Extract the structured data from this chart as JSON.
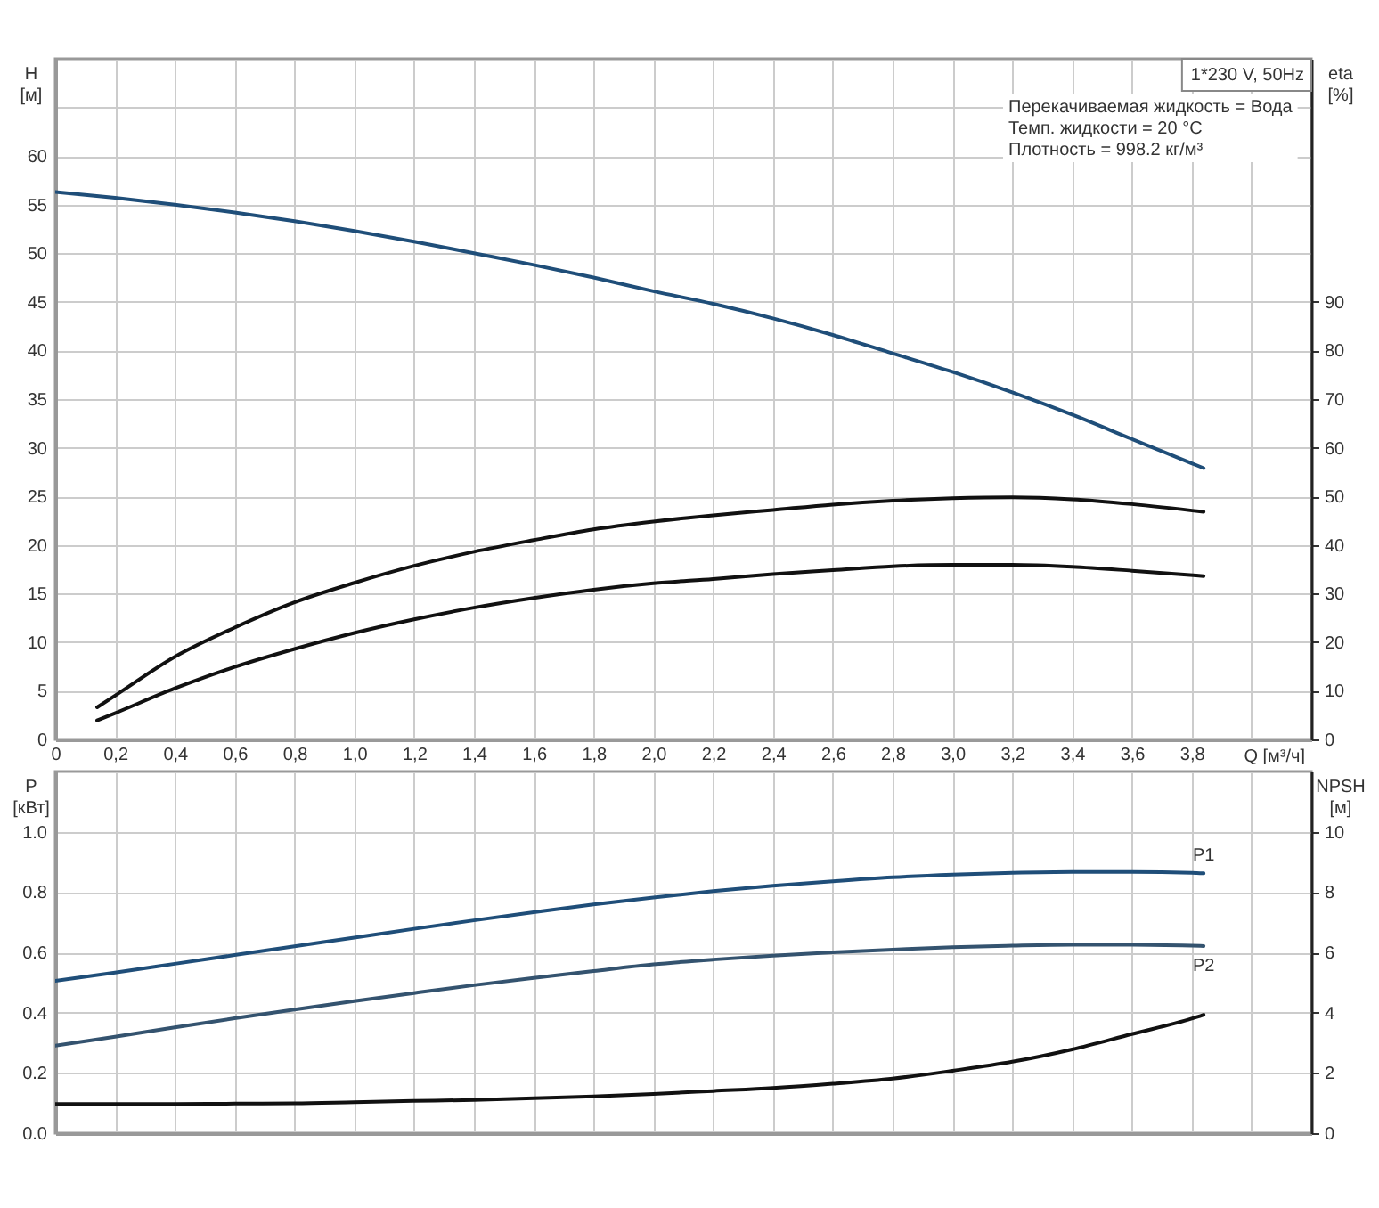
{
  "chart_data": [
    {
      "type": "line",
      "xlabel": "Q [м³/ч]",
      "ylabel": "H [м]",
      "y2label": "eta [%]",
      "annotations": [
        "1*230 V, 50Hz",
        "Перекачиваемая жидкость = Вода",
        "Темп. жидкости = 20 °C",
        "Плотность = 998.2 кг/м³"
      ],
      "xlim": [
        0,
        4.2
      ],
      "xticks": [
        0,
        {
          "value": 0.2,
          "label": "0,2"
        },
        {
          "value": 0.4,
          "label": "0,4"
        },
        {
          "value": 0.6,
          "label": "0,6"
        },
        {
          "value": 0.8,
          "label": "0,8"
        },
        {
          "value": 1,
          "label": "1,0"
        },
        {
          "value": 1.2,
          "label": "1,2"
        },
        {
          "value": 1.4,
          "label": "1,4"
        },
        {
          "value": 1.6,
          "label": "1,6"
        },
        {
          "value": 1.8,
          "label": "1,8"
        },
        {
          "value": 2,
          "label": "2,0"
        },
        {
          "value": 2.2,
          "label": "2,2"
        },
        {
          "value": 2.4,
          "label": "2,4"
        },
        {
          "value": 2.6,
          "label": "2,6"
        },
        {
          "value": 2.8,
          "label": "2,8"
        },
        {
          "value": 3,
          "label": "3,0"
        },
        {
          "value": 3.2,
          "label": "3,2"
        },
        {
          "value": 3.4,
          "label": "3,4"
        },
        {
          "value": 3.6,
          "label": "3,6"
        },
        {
          "value": 3.8,
          "label": "3,8"
        },
        {
          "value": 4,
          "label": null
        },
        {
          "value": 4.2,
          "label": null
        }
      ],
      "ylim": [
        0,
        70
      ],
      "yticks": [
        0,
        5,
        10,
        15,
        20,
        25,
        30,
        35,
        40,
        45,
        50,
        55,
        60,
        {
          "value": 65,
          "label": null
        }
      ],
      "y2lim": [
        0,
        140
      ],
      "y2ticks": [
        0,
        10,
        20,
        30,
        40,
        50,
        60,
        70,
        80,
        90
      ],
      "grid": true,
      "series": [
        {
          "color": "#1f4e79",
          "x": [
            0,
            0.2,
            0.4,
            0.6,
            0.8,
            1,
            1.2,
            1.4,
            1.6,
            1.8,
            2,
            2.2,
            2.4,
            2.6,
            2.8,
            3,
            3.2,
            3.4,
            3.6,
            3.8,
            3.84
          ],
          "values": [
            56.3,
            55.7,
            55.0,
            54.2,
            53.3,
            52.3,
            51.2,
            50.0,
            48.8,
            47.5,
            46.1,
            44.8,
            43.3,
            41.6,
            39.7,
            37.8,
            35.7,
            33.4,
            30.9,
            28.4,
            27.9
          ]
        },
        {
          "color": "#111111",
          "axis": "y2",
          "x": [
            0.14,
            0.2,
            0.4,
            0.6,
            0.8,
            1,
            1.2,
            1.4,
            1.6,
            1.8,
            2,
            2.2,
            2.4,
            2.6,
            2.8,
            3,
            3.2,
            3.4,
            3.6,
            3.84
          ],
          "values": [
            6.6,
            9.0,
            17.0,
            23.0,
            28.2,
            32.2,
            35.7,
            38.6,
            41.0,
            43.2,
            44.8,
            46.1,
            47.2,
            48.3,
            49.1,
            49.6,
            49.8,
            49.4,
            48.4,
            46.8
          ]
        },
        {
          "color": "#111111",
          "axis": "y2",
          "x": [
            0.14,
            0.2,
            0.4,
            0.6,
            0.8,
            1,
            1.2,
            1.4,
            1.6,
            1.8,
            2,
            2.2,
            2.4,
            2.6,
            2.8,
            3,
            3.2,
            3.4,
            3.6,
            3.84
          ],
          "values": [
            3.9,
            5.4,
            10.5,
            14.9,
            18.6,
            21.9,
            24.7,
            27.1,
            29.1,
            30.8,
            32.1,
            33.0,
            34.0,
            34.8,
            35.6,
            35.9,
            35.9,
            35.5,
            34.7,
            33.6
          ]
        }
      ]
    },
    {
      "type": "line",
      "ylabel": "P [кВт]",
      "y2label": "NPSH [м]",
      "tick_labels": "y",
      "xlim": [
        0,
        4.2
      ],
      "xticks": [
        0,
        0.2,
        0.4,
        0.6,
        0.8,
        1,
        1.2,
        1.4,
        1.6,
        1.8,
        2,
        2.2,
        2.4,
        2.6,
        2.8,
        3,
        3.2,
        3.4,
        3.6,
        3.8,
        4,
        4.2
      ],
      "ylim": [
        0,
        1.2
      ],
      "yticks": [
        {
          "value": 0,
          "label": "0.0"
        },
        0.2,
        0.4,
        0.6,
        0.8,
        {
          "value": 1,
          "label": "1.0"
        }
      ],
      "y2lim": [
        0,
        12
      ],
      "y2ticks": [
        0,
        2,
        4,
        6,
        8,
        10
      ],
      "grid": true,
      "series": [
        {
          "name": "P1",
          "color": "#1f4e79",
          "x": [
            0,
            0.2,
            0.4,
            0.6,
            0.8,
            1,
            1.2,
            1.4,
            1.6,
            1.8,
            2,
            2.2,
            2.4,
            2.6,
            2.8,
            3,
            3.2,
            3.4,
            3.6,
            3.8,
            3.84
          ],
          "values": [
            0.505,
            0.533,
            0.562,
            0.591,
            0.62,
            0.649,
            0.678,
            0.706,
            0.733,
            0.759,
            0.782,
            0.803,
            0.821,
            0.836,
            0.849,
            0.858,
            0.864,
            0.867,
            0.867,
            0.864,
            0.862
          ]
        },
        {
          "name": "P2",
          "color": "#34536f",
          "x": [
            0,
            0.2,
            0.4,
            0.6,
            0.8,
            1,
            1.2,
            1.4,
            1.6,
            1.8,
            2,
            2.2,
            2.4,
            2.6,
            2.8,
            3,
            3.2,
            3.4,
            3.6,
            3.8,
            3.84
          ],
          "values": [
            0.29,
            0.32,
            0.351,
            0.381,
            0.41,
            0.438,
            0.465,
            0.491,
            0.515,
            0.538,
            0.56,
            0.576,
            0.589,
            0.6,
            0.609,
            0.617,
            0.622,
            0.625,
            0.625,
            0.622,
            0.621
          ]
        },
        {
          "color": "#111111",
          "axis": "y2",
          "x": [
            0,
            0.2,
            0.4,
            0.6,
            0.8,
            1,
            1.2,
            1.4,
            1.6,
            1.8,
            2,
            2.2,
            2.4,
            2.6,
            2.8,
            3,
            3.2,
            3.4,
            3.6,
            3.8,
            3.84
          ],
          "values": [
            0.97,
            0.97,
            0.97,
            0.98,
            0.99,
            1.03,
            1.07,
            1.1,
            1.16,
            1.22,
            1.3,
            1.4,
            1.5,
            1.64,
            1.81,
            2.07,
            2.37,
            2.78,
            3.29,
            3.8,
            3.93
          ]
        }
      ]
    }
  ]
}
